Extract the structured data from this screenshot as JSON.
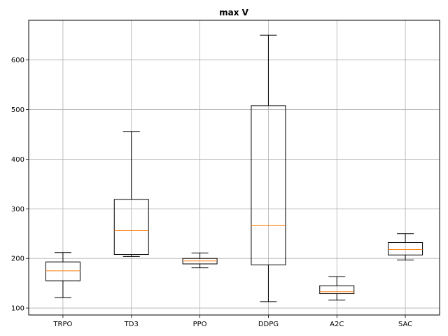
{
  "chart_data": {
    "type": "boxplot",
    "title": "max V",
    "xlabel": "",
    "ylabel": "",
    "categories": [
      "TRPO",
      "TD3",
      "PPO",
      "DDPG",
      "A2C",
      "SAC"
    ],
    "boxes": [
      {
        "name": "TRPO",
        "whisker_low": 121,
        "q1": 155,
        "median": 175,
        "q3": 193,
        "whisker_high": 212
      },
      {
        "name": "TD3",
        "whisker_low": 204,
        "q1": 208,
        "median": 256,
        "q3": 319,
        "whisker_high": 456
      },
      {
        "name": "PPO",
        "whisker_low": 181,
        "q1": 189,
        "median": 195,
        "q3": 200,
        "whisker_high": 211
      },
      {
        "name": "DDPG",
        "whisker_low": 113,
        "q1": 187,
        "median": 266,
        "q3": 508,
        "whisker_high": 650
      },
      {
        "name": "A2C",
        "whisker_low": 116,
        "q1": 129,
        "median": 133,
        "q3": 145,
        "whisker_high": 163
      },
      {
        "name": "SAC",
        "whisker_low": 197,
        "q1": 207,
        "median": 218,
        "q3": 232,
        "whisker_high": 250
      }
    ],
    "y_ticks": [
      100,
      200,
      300,
      400,
      500,
      600
    ],
    "ylim": [
      86,
      680
    ],
    "grid": true,
    "colors": {
      "box": "#000000",
      "median": "#ff7f0e",
      "grid": "#b0b0b0"
    }
  }
}
